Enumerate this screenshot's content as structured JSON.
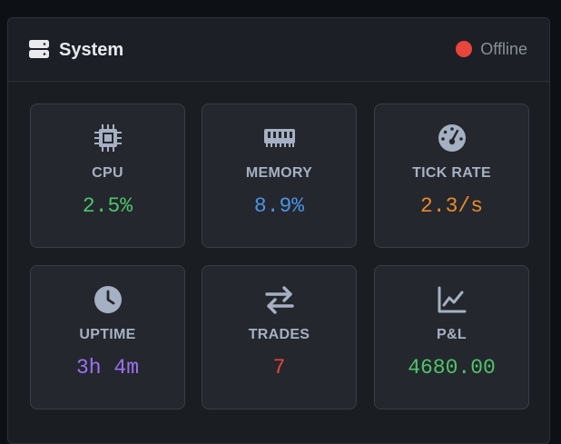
{
  "header": {
    "title": "System",
    "icon": "server-icon",
    "status": {
      "label": "Offline",
      "color": "#e8453c"
    }
  },
  "metrics": [
    {
      "label": "CPU",
      "value": "2.5%",
      "icon": "cpu-icon",
      "color": "#4fc46a"
    },
    {
      "label": "MEMORY",
      "value": "8.9%",
      "icon": "memory-icon",
      "color": "#4a94e6"
    },
    {
      "label": "TICK RATE",
      "value": "2.3/s",
      "icon": "gauge-icon",
      "color": "#e98a2b"
    },
    {
      "label": "UPTIME",
      "value": "3h 4m",
      "icon": "clock-icon",
      "color": "#9b72f0"
    },
    {
      "label": "TRADES",
      "value": "7",
      "icon": "exchange-icon",
      "color": "#e8453c"
    },
    {
      "label": "P&L",
      "value": "4680.00",
      "icon": "chart-line-icon",
      "color": "#4fc46a"
    }
  ]
}
